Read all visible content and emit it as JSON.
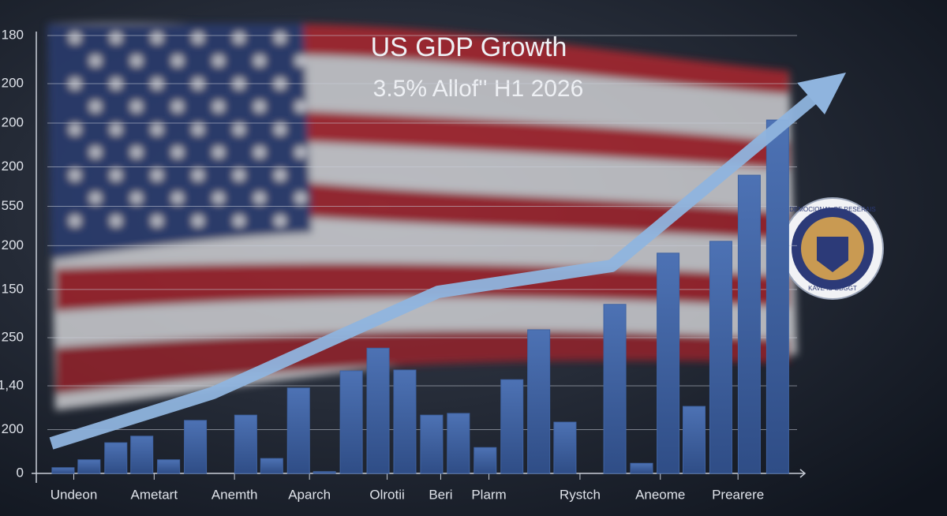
{
  "chart_data": {
    "type": "bar",
    "title": "US GDP Growth",
    "subtitle": "3.5% Allof'' H1 2026",
    "x": [
      1,
      1.97,
      2.97,
      3.94,
      4.94,
      5.94,
      7.82,
      8.79,
      9.79,
      10.76,
      11.76,
      12.76,
      13.76,
      14.76,
      15.76,
      16.76,
      17.76,
      18.76,
      19.74,
      21.6,
      22.6,
      23.59,
      24.56,
      25.56,
      26.62,
      27.68
    ],
    "values": [
      0.13,
      0.31,
      0.7,
      0.85,
      0.31,
      1.21,
      1.33,
      0.34,
      1.95,
      0.04,
      2.34,
      2.86,
      2.36,
      1.33,
      1.37,
      0.59,
      2.14,
      3.28,
      1.17,
      3.86,
      0.23,
      5.03,
      1.53,
      5.3,
      6.81,
      8.07
    ],
    "color": "#3f63a3",
    "xlim": [
      0,
      28.7
    ],
    "xticks": [
      {
        "value": 1.4,
        "label": "Undeon"
      },
      {
        "value": 4.4,
        "label": "Ametart"
      },
      {
        "value": 7.4,
        "label": "Anemth"
      },
      {
        "value": 10.2,
        "label": "Aparch"
      },
      {
        "value": 13.1,
        "label": "Olrotii"
      },
      {
        "value": 15.1,
        "label": "Beri"
      },
      {
        "value": 16.9,
        "label": "Plarm"
      },
      {
        "value": 20.3,
        "label": "Rystch"
      },
      {
        "value": 23.3,
        "label": "Aneome"
      },
      {
        "value": 26.2,
        "label": "Prearere"
      }
    ],
    "ylim": [
      0,
      10
    ],
    "yticks": [
      {
        "value": 10,
        "label": "180"
      },
      {
        "value": 8.9,
        "label": "200"
      },
      {
        "value": 8,
        "label": "200"
      },
      {
        "value": 7,
        "label": "200"
      },
      {
        "value": 6.1,
        "label": "550"
      },
      {
        "value": 5.2,
        "label": "200"
      },
      {
        "value": 4.2,
        "label": "150"
      },
      {
        "value": 3.1,
        "label": "250"
      },
      {
        "value": 2,
        "label": "1,40"
      },
      {
        "value": 1,
        "label": "200"
      },
      0
    ],
    "grid": true,
    "seal": {
      "top_text": "DEMOCIONAL OF RESERAIS",
      "bottom_text": "KAVE IS GBGGT"
    }
  }
}
